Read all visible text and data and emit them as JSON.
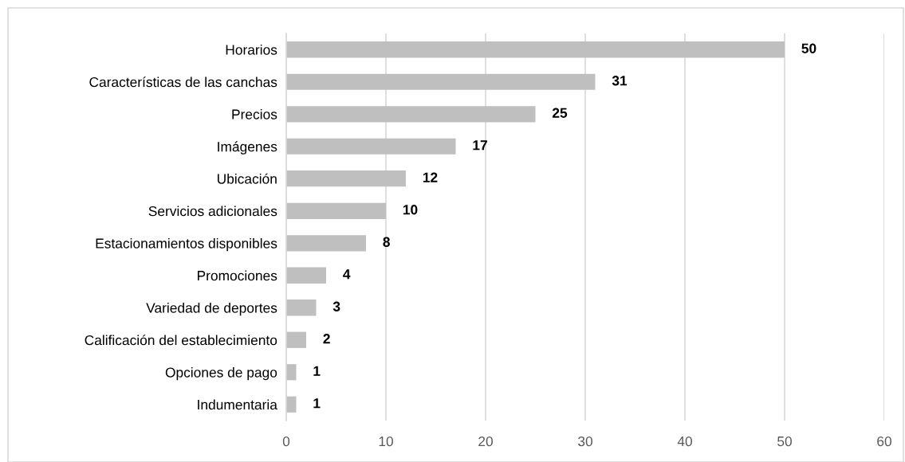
{
  "chart_data": {
    "type": "bar",
    "orientation": "horizontal",
    "categories": [
      "Horarios",
      "Características de las canchas",
      "Precios",
      "Imágenes",
      "Ubicación",
      "Servicios adicionales",
      "Estacionamientos disponibles",
      "Promociones",
      "Variedad de deportes",
      "Calificación del establecimiento",
      "Opciones de pago",
      "Indumentaria"
    ],
    "values": [
      50,
      31,
      25,
      17,
      12,
      10,
      8,
      4,
      3,
      2,
      1,
      1
    ],
    "color": "#bfbfbf",
    "xlim": [
      0,
      60
    ],
    "xticks": [
      0,
      10,
      20,
      30,
      40,
      50,
      60
    ],
    "grid": "x",
    "data_labels": true
  }
}
